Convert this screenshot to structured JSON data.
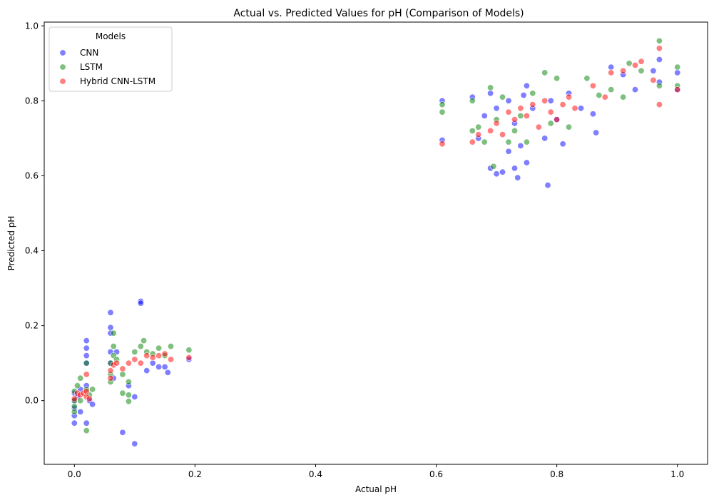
{
  "chart_data": {
    "type": "scatter",
    "title": "Actual vs. Predicted Values for pH (Comparison of Models)",
    "xlabel": "Actual pH",
    "ylabel": "Predicted pH",
    "xlim": [
      -0.05,
      1.05
    ],
    "ylim": [
      -0.17,
      1.01
    ],
    "xticks": [
      0.0,
      0.2,
      0.4,
      0.6,
      0.8,
      1.0
    ],
    "xtick_labels": [
      "0.0",
      "0.2",
      "0.4",
      "0.6",
      "0.8",
      "1.0"
    ],
    "yticks": [
      0.0,
      0.2,
      0.4,
      0.6,
      0.8,
      1.0
    ],
    "ytick_labels": [
      "0.0",
      "0.2",
      "0.4",
      "0.6",
      "0.8",
      "1.0"
    ],
    "grid": false,
    "legend": {
      "title": "Models",
      "placement": "top-left"
    },
    "series": [
      {
        "name": "CNN",
        "color": "#0000ff",
        "points": [
          [
            0.0,
            -0.06
          ],
          [
            0.0,
            -0.04
          ],
          [
            0.0,
            -0.02
          ],
          [
            0.0,
            0.0
          ],
          [
            0.0,
            0.02
          ],
          [
            0.005,
            0.01
          ],
          [
            0.01,
            -0.03
          ],
          [
            0.01,
            0.03
          ],
          [
            0.02,
            -0.06
          ],
          [
            0.02,
            0.16
          ],
          [
            0.02,
            0.14
          ],
          [
            0.02,
            0.12
          ],
          [
            0.02,
            0.1
          ],
          [
            0.02,
            0.04
          ],
          [
            0.025,
            0.0
          ],
          [
            0.03,
            -0.01
          ],
          [
            0.06,
            0.235
          ],
          [
            0.06,
            0.195
          ],
          [
            0.06,
            0.18
          ],
          [
            0.06,
            0.13
          ],
          [
            0.06,
            0.1
          ],
          [
            0.065,
            0.06
          ],
          [
            0.07,
            0.13
          ],
          [
            0.08,
            -0.085
          ],
          [
            0.09,
            0.04
          ],
          [
            0.1,
            0.01
          ],
          [
            0.1,
            -0.115
          ],
          [
            0.11,
            0.265
          ],
          [
            0.11,
            0.26
          ],
          [
            0.12,
            0.08
          ],
          [
            0.13,
            0.1
          ],
          [
            0.14,
            0.09
          ],
          [
            0.15,
            0.09
          ],
          [
            0.155,
            0.075
          ],
          [
            0.19,
            0.11
          ],
          [
            0.61,
            0.8
          ],
          [
            0.61,
            0.695
          ],
          [
            0.66,
            0.81
          ],
          [
            0.67,
            0.7
          ],
          [
            0.68,
            0.76
          ],
          [
            0.69,
            0.62
          ],
          [
            0.69,
            0.82
          ],
          [
            0.7,
            0.605
          ],
          [
            0.7,
            0.78
          ],
          [
            0.71,
            0.61
          ],
          [
            0.72,
            0.665
          ],
          [
            0.72,
            0.8
          ],
          [
            0.73,
            0.62
          ],
          [
            0.73,
            0.74
          ],
          [
            0.735,
            0.595
          ],
          [
            0.74,
            0.68
          ],
          [
            0.745,
            0.815
          ],
          [
            0.75,
            0.635
          ],
          [
            0.75,
            0.84
          ],
          [
            0.76,
            0.78
          ],
          [
            0.78,
            0.7
          ],
          [
            0.785,
            0.575
          ],
          [
            0.79,
            0.8
          ],
          [
            0.8,
            0.75
          ],
          [
            0.81,
            0.685
          ],
          [
            0.82,
            0.82
          ],
          [
            0.84,
            0.78
          ],
          [
            0.86,
            0.765
          ],
          [
            0.865,
            0.715
          ],
          [
            0.89,
            0.89
          ],
          [
            0.91,
            0.87
          ],
          [
            0.93,
            0.83
          ],
          [
            0.96,
            0.88
          ],
          [
            0.97,
            0.91
          ],
          [
            0.97,
            0.85
          ],
          [
            1.0,
            0.875
          ],
          [
            1.0,
            0.83
          ]
        ]
      },
      {
        "name": "LSTM",
        "color": "#008000",
        "points": [
          [
            0.0,
            -0.03
          ],
          [
            0.0,
            -0.015
          ],
          [
            0.0,
            0.0
          ],
          [
            0.0,
            0.025
          ],
          [
            0.005,
            0.04
          ],
          [
            0.01,
            0.06
          ],
          [
            0.01,
            0.0
          ],
          [
            0.02,
            -0.08
          ],
          [
            0.02,
            0.1
          ],
          [
            0.02,
            0.03
          ],
          [
            0.025,
            0.015
          ],
          [
            0.03,
            0.03
          ],
          [
            0.06,
            0.05
          ],
          [
            0.06,
            0.07
          ],
          [
            0.06,
            0.1
          ],
          [
            0.065,
            0.12
          ],
          [
            0.065,
            0.145
          ],
          [
            0.065,
            0.18
          ],
          [
            0.07,
            0.11
          ],
          [
            0.08,
            0.02
          ],
          [
            0.08,
            0.07
          ],
          [
            0.09,
            -0.002
          ],
          [
            0.09,
            0.015
          ],
          [
            0.09,
            0.05
          ],
          [
            0.1,
            0.13
          ],
          [
            0.11,
            0.145
          ],
          [
            0.115,
            0.16
          ],
          [
            0.12,
            0.13
          ],
          [
            0.13,
            0.125
          ],
          [
            0.14,
            0.14
          ],
          [
            0.15,
            0.12
          ],
          [
            0.16,
            0.145
          ],
          [
            0.19,
            0.135
          ],
          [
            0.61,
            0.77
          ],
          [
            0.61,
            0.79
          ],
          [
            0.66,
            0.72
          ],
          [
            0.66,
            0.8
          ],
          [
            0.67,
            0.73
          ],
          [
            0.68,
            0.69
          ],
          [
            0.69,
            0.835
          ],
          [
            0.695,
            0.625
          ],
          [
            0.7,
            0.75
          ],
          [
            0.71,
            0.81
          ],
          [
            0.72,
            0.69
          ],
          [
            0.73,
            0.72
          ],
          [
            0.74,
            0.76
          ],
          [
            0.75,
            0.69
          ],
          [
            0.76,
            0.82
          ],
          [
            0.78,
            0.875
          ],
          [
            0.79,
            0.74
          ],
          [
            0.8,
            0.86
          ],
          [
            0.82,
            0.73
          ],
          [
            0.85,
            0.86
          ],
          [
            0.87,
            0.815
          ],
          [
            0.89,
            0.83
          ],
          [
            0.91,
            0.81
          ],
          [
            0.92,
            0.9
          ],
          [
            0.94,
            0.88
          ],
          [
            0.97,
            0.96
          ],
          [
            0.97,
            0.84
          ],
          [
            1.0,
            0.89
          ],
          [
            1.0,
            0.84
          ]
        ]
      },
      {
        "name": "Hybrid CNN-LSTM",
        "color": "#ff0000",
        "points": [
          [
            0.0,
            0.005
          ],
          [
            0.005,
            0.02
          ],
          [
            0.01,
            0.015
          ],
          [
            0.015,
            0.02
          ],
          [
            0.02,
            0.025
          ],
          [
            0.02,
            0.07
          ],
          [
            0.02,
            0.01
          ],
          [
            0.025,
            0.005
          ],
          [
            0.06,
            0.06
          ],
          [
            0.06,
            0.08
          ],
          [
            0.065,
            0.095
          ],
          [
            0.07,
            0.1
          ],
          [
            0.08,
            0.085
          ],
          [
            0.09,
            0.1
          ],
          [
            0.1,
            0.11
          ],
          [
            0.11,
            0.1
          ],
          [
            0.12,
            0.12
          ],
          [
            0.13,
            0.115
          ],
          [
            0.14,
            0.12
          ],
          [
            0.15,
            0.125
          ],
          [
            0.16,
            0.11
          ],
          [
            0.19,
            0.115
          ],
          [
            0.61,
            0.685
          ],
          [
            0.66,
            0.69
          ],
          [
            0.67,
            0.71
          ],
          [
            0.69,
            0.72
          ],
          [
            0.7,
            0.74
          ],
          [
            0.71,
            0.71
          ],
          [
            0.72,
            0.77
          ],
          [
            0.73,
            0.75
          ],
          [
            0.74,
            0.78
          ],
          [
            0.75,
            0.76
          ],
          [
            0.76,
            0.79
          ],
          [
            0.77,
            0.73
          ],
          [
            0.78,
            0.8
          ],
          [
            0.79,
            0.77
          ],
          [
            0.8,
            0.75
          ],
          [
            0.81,
            0.79
          ],
          [
            0.82,
            0.81
          ],
          [
            0.83,
            0.78
          ],
          [
            0.86,
            0.84
          ],
          [
            0.88,
            0.81
          ],
          [
            0.89,
            0.875
          ],
          [
            0.91,
            0.88
          ],
          [
            0.93,
            0.895
          ],
          [
            0.94,
            0.905
          ],
          [
            0.96,
            0.855
          ],
          [
            0.97,
            0.94
          ],
          [
            0.97,
            0.79
          ],
          [
            1.0,
            0.83
          ]
        ]
      }
    ]
  }
}
